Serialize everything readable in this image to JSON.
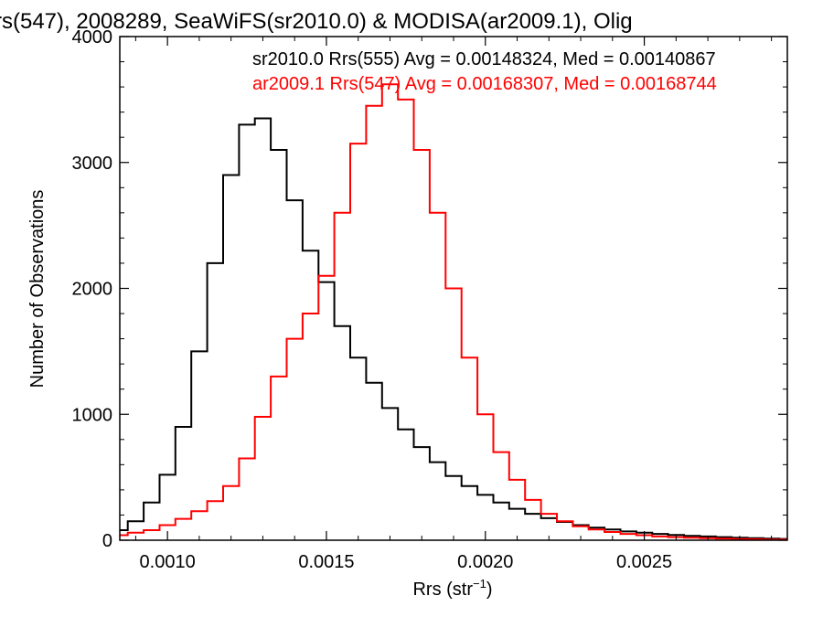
{
  "chart_data": {
    "type": "line",
    "title": "rs(547), 2008289, SeaWiFS(sr2010.0) & MODISA(ar2009.1), Olig",
    "xlabel": "Rrs (str",
    "xlabel_sup": "−1",
    "xlabel_close": ")",
    "ylabel": "Number of Observations",
    "xlim": [
      0.00085,
      0.00295
    ],
    "ylim": [
      0,
      4000
    ],
    "x_ticks": [
      0.001,
      0.0015,
      0.002,
      0.0025
    ],
    "x_tick_labels": [
      "0.0010",
      "0.0015",
      "0.0020",
      "0.0025"
    ],
    "y_ticks": [
      0,
      1000,
      2000,
      3000,
      4000
    ],
    "y_tick_labels": [
      "0",
      "1000",
      "2000",
      "3000",
      "4000"
    ],
    "grid": false,
    "legend_placement": "top-right",
    "x": [
      0.00085,
      0.0009,
      0.00095,
      0.001,
      0.00105,
      0.0011,
      0.00115,
      0.0012,
      0.00125,
      0.0013,
      0.00135,
      0.0014,
      0.00145,
      0.0015,
      0.00155,
      0.0016,
      0.00165,
      0.0017,
      0.00175,
      0.0018,
      0.00185,
      0.0019,
      0.00195,
      0.002,
      0.00205,
      0.0021,
      0.00215,
      0.0022,
      0.00225,
      0.0023,
      0.00235,
      0.0024,
      0.00245,
      0.0025,
      0.00255,
      0.0026,
      0.00265,
      0.0027,
      0.00275,
      0.0028,
      0.00285,
      0.0029,
      0.00295
    ],
    "series": [
      {
        "name": "sr2010.0 Rrs(555) Avg = 0.00148324, Med = 0.00140867",
        "color": "#000000",
        "values": [
          80,
          150,
          300,
          520,
          900,
          1500,
          2200,
          2900,
          3300,
          3350,
          3100,
          2700,
          2300,
          2050,
          1700,
          1450,
          1250,
          1050,
          880,
          740,
          620,
          510,
          430,
          360,
          300,
          250,
          210,
          175,
          145,
          120,
          100,
          85,
          70,
          60,
          50,
          42,
          35,
          30,
          25,
          20,
          16,
          12,
          10
        ]
      },
      {
        "name": "ar2009.1 Rrs(547) Avg = 0.00168307, Med = 0.00168744",
        "color": "#ff0000",
        "values": [
          40,
          60,
          80,
          120,
          170,
          230,
          310,
          430,
          650,
          980,
          1300,
          1600,
          1800,
          2100,
          2600,
          3150,
          3450,
          3620,
          3500,
          3100,
          2600,
          2000,
          1450,
          1000,
          700,
          480,
          320,
          210,
          150,
          110,
          85,
          65,
          50,
          40,
          30,
          25,
          20,
          16,
          12,
          10,
          8,
          6,
          5
        ]
      }
    ]
  }
}
